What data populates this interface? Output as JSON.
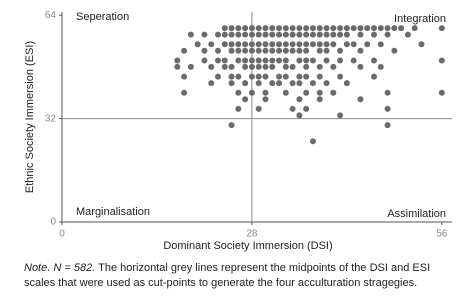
{
  "chart_data": {
    "type": "scatter",
    "x_label": "Dominant Society Immersion (DSI)",
    "y_label": "Ethnic Society Immersion (ESI)",
    "quadrant_labels": {
      "top_left": "Seperation",
      "top_right": "Integration",
      "bottom_left": "Marginalisation",
      "bottom_right": "Assimilation"
    },
    "xlim": [
      0,
      57.5
    ],
    "ylim": [
      0,
      65
    ],
    "xticks": [
      0,
      28,
      56
    ],
    "yticks": [
      0,
      32,
      64
    ],
    "reference_lines": {
      "x": 28,
      "y": 32,
      "color": "#888888"
    },
    "color": "#6b6b6b",
    "x": [
      24,
      25,
      26,
      27,
      28,
      29,
      30,
      31,
      32,
      33,
      34,
      35,
      36,
      37,
      38,
      39,
      40,
      41,
      42,
      43,
      44,
      45,
      46,
      47,
      48,
      49,
      50,
      52,
      56,
      19,
      21,
      23,
      24,
      25,
      26,
      27,
      28,
      29,
      30,
      31,
      32,
      33,
      34,
      35,
      36,
      37,
      38,
      39,
      40,
      41,
      42,
      44,
      46,
      48,
      51,
      20,
      22,
      24,
      25,
      26,
      27,
      28,
      29,
      30,
      31,
      32,
      33,
      34,
      35,
      36,
      37,
      38,
      39,
      40,
      42,
      43,
      45,
      47,
      53,
      18,
      21,
      23,
      25,
      26,
      27,
      28,
      29,
      30,
      31,
      32,
      33,
      34,
      35,
      36,
      38,
      39,
      41,
      44,
      49,
      17,
      21,
      23,
      24,
      26,
      27,
      28,
      29,
      30,
      31,
      32,
      33,
      35,
      36,
      37,
      39,
      41,
      43,
      46,
      56,
      17,
      19,
      22,
      24,
      25,
      27,
      28,
      29,
      30,
      31,
      33,
      34,
      36,
      38,
      40,
      44,
      47,
      18,
      23,
      25,
      26,
      28,
      29,
      30,
      32,
      33,
      35,
      36,
      38,
      41,
      46,
      22,
      25,
      27,
      29,
      31,
      32,
      34,
      35,
      37,
      39,
      42,
      18,
      26,
      28,
      30,
      33,
      36,
      38,
      40,
      48,
      56,
      27,
      30,
      35,
      38,
      44,
      26,
      29,
      34,
      36,
      48,
      35,
      41,
      25,
      48,
      37
    ],
    "y": [
      60,
      60,
      60,
      60,
      60,
      60,
      60,
      60,
      60,
      60,
      60,
      60,
      60,
      60,
      60,
      60,
      60,
      60,
      60,
      60,
      60,
      60,
      60,
      60,
      60,
      60,
      60,
      60,
      60,
      58,
      58,
      58,
      58,
      58,
      58,
      58,
      58,
      58,
      58,
      58,
      58,
      58,
      58,
      58,
      58,
      58,
      58,
      58,
      58,
      58,
      58,
      58,
      58,
      58,
      58,
      55,
      55,
      55,
      55,
      55,
      55,
      55,
      55,
      55,
      55,
      55,
      55,
      55,
      55,
      55,
      55,
      55,
      55,
      55,
      55,
      55,
      55,
      55,
      55,
      53,
      53,
      53,
      53,
      53,
      53,
      53,
      53,
      53,
      53,
      53,
      53,
      53,
      53,
      53,
      53,
      53,
      53,
      53,
      53,
      50,
      50,
      50,
      50,
      50,
      50,
      50,
      50,
      50,
      50,
      50,
      50,
      50,
      50,
      50,
      50,
      50,
      50,
      50,
      50,
      48,
      48,
      48,
      48,
      48,
      48,
      48,
      48,
      48,
      48,
      48,
      48,
      48,
      48,
      48,
      48,
      48,
      45,
      45,
      45,
      45,
      45,
      45,
      45,
      45,
      45,
      45,
      45,
      45,
      45,
      45,
      43,
      43,
      43,
      43,
      43,
      43,
      43,
      43,
      43,
      43,
      43,
      40,
      40,
      40,
      40,
      40,
      40,
      40,
      40,
      40,
      40,
      38,
      38,
      38,
      38,
      38,
      35,
      35,
      35,
      35,
      35,
      33,
      33,
      30,
      30,
      25
    ]
  },
  "note": {
    "lead": "Note. N = 582.",
    "text": "The horizontal grey lines represent the midpoints of the DSI and ESI scales that were used as cut-points to generate the four acculturation stragegies."
  }
}
